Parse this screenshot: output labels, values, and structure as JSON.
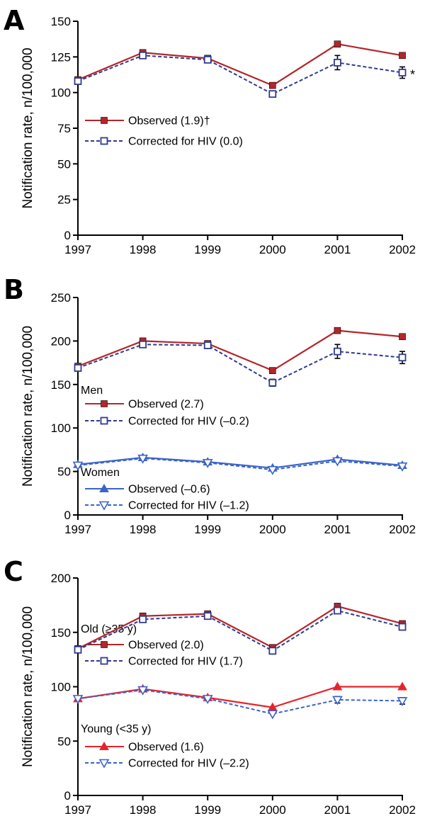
{
  "colors": {
    "dark_red": "#b3262b",
    "navy": "#2f3a8f",
    "bright_red": "#e8222a",
    "blue": "#3a64c8",
    "black": "#000000"
  },
  "chart_data": [
    {
      "panel": "A",
      "type": "line",
      "x": [
        "1997",
        "1998",
        "1999",
        "2000",
        "2001",
        "2002"
      ],
      "ylabel": "Notification rate, n/100,000",
      "ylim": [
        0,
        150
      ],
      "yticks": [
        "0",
        "25",
        "50",
        "75",
        "100",
        "125",
        "150"
      ],
      "annotations": [
        "*"
      ],
      "series": [
        {
          "name": "Observed (1.9)†",
          "values": [
            109,
            128,
            124,
            105,
            134,
            126
          ],
          "color": "#b3262b",
          "marker": "square-filled",
          "dash": false,
          "errors": [
            0,
            0,
            0,
            0,
            0,
            0
          ]
        },
        {
          "name": "Corrected for HIV (0.0)",
          "values": [
            108,
            126,
            123,
            99,
            121,
            114
          ],
          "color": "#2f3a8f",
          "marker": "square-open",
          "dash": true,
          "errors": [
            0,
            0,
            0,
            0,
            5,
            4
          ]
        }
      ]
    },
    {
      "panel": "B",
      "type": "line",
      "x": [
        "1997",
        "1998",
        "1999",
        "2000",
        "2001",
        "2002"
      ],
      "ylabel": "Notification rate, n/100,000",
      "ylim": [
        0,
        250
      ],
      "yticks": [
        "0",
        "50",
        "100",
        "150",
        "200",
        "250"
      ],
      "groups": [
        {
          "label": "Men",
          "series": [
            {
              "name": "Observed (2.7)",
              "values": [
                171,
                200,
                197,
                166,
                212,
                205
              ],
              "color": "#b3262b",
              "marker": "square-filled",
              "dash": false,
              "errors": [
                0,
                0,
                0,
                0,
                0,
                0
              ]
            },
            {
              "name": "Corrected for HIV (–0.2)",
              "values": [
                169,
                196,
                195,
                152,
                188,
                181
              ],
              "color": "#2f3a8f",
              "marker": "square-open",
              "dash": true,
              "errors": [
                0,
                0,
                0,
                4,
                8,
                7
              ]
            }
          ]
        },
        {
          "label": "Women",
          "series": [
            {
              "name": "Observed (–0.6)",
              "values": [
                58,
                66,
                61,
                54,
                64,
                57
              ],
              "color": "#3a64c8",
              "marker": "triangle-up",
              "dash": false,
              "errors": [
                0,
                0,
                0,
                0,
                0,
                0
              ]
            },
            {
              "name": "Corrected for HIV (–1.2)",
              "values": [
                57,
                65,
                60,
                52,
                62,
                56
              ],
              "color": "#3a64c8",
              "marker": "triangle-down-open",
              "dash": true,
              "errors": [
                0,
                0,
                0,
                0,
                0,
                0
              ]
            }
          ]
        }
      ]
    },
    {
      "panel": "C",
      "type": "line",
      "x": [
        "1997",
        "1998",
        "1999",
        "2000",
        "2001",
        "2002"
      ],
      "ylabel": "Notification rate, n/100,000",
      "ylim": [
        0,
        200
      ],
      "yticks": [
        "0",
        "50",
        "100",
        "150",
        "200"
      ],
      "groups": [
        {
          "label": "Old (≥35 y)",
          "series": [
            {
              "name": "Observed (2.0)",
              "values": [
                135,
                165,
                167,
                136,
                174,
                158
              ],
              "color": "#b3262b",
              "marker": "square-filled",
              "dash": false,
              "errors": [
                0,
                0,
                0,
                0,
                0,
                0
              ]
            },
            {
              "name": "Corrected for HIV (1.7)",
              "values": [
                134,
                162,
                165,
                133,
                170,
                155
              ],
              "color": "#2f3a8f",
              "marker": "square-open",
              "dash": true,
              "errors": [
                0,
                0,
                0,
                0,
                0,
                0
              ]
            }
          ]
        },
        {
          "label": "Young (<35 y)",
          "series": [
            {
              "name": "Observed (1.6)",
              "values": [
                89,
                98,
                90,
                81,
                100,
                100
              ],
              "color": "#e8222a",
              "marker": "triangle-up",
              "dash": false,
              "errors": [
                0,
                0,
                0,
                0,
                0,
                0
              ]
            },
            {
              "name": "Corrected for HIV (–2.2)",
              "values": [
                89,
                97,
                89,
                75,
                88,
                87
              ],
              "color": "#3a64c8",
              "marker": "triangle-down-open",
              "dash": true,
              "errors": [
                0,
                0,
                0,
                0,
                3,
                3
              ]
            }
          ]
        }
      ]
    }
  ]
}
